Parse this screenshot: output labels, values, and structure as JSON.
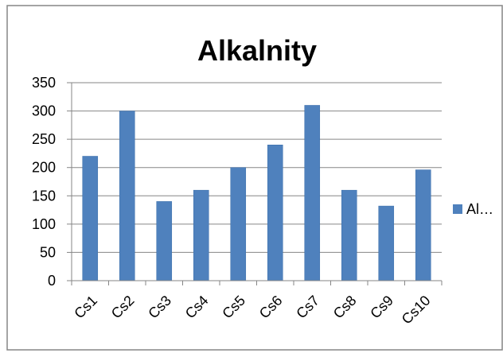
{
  "chart_data": {
    "type": "bar",
    "title": "Alkalnity",
    "xlabel": "",
    "ylabel": "",
    "categories": [
      "Cs1",
      "Cs2",
      "Cs3",
      "Cs4",
      "Cs5",
      "Cs6",
      "Cs7",
      "Cs8",
      "Cs9",
      "Cs10"
    ],
    "series": [
      {
        "name": "Al…",
        "values": [
          220,
          300,
          140,
          160,
          200,
          240,
          310,
          160,
          132,
          196
        ]
      }
    ],
    "ylim": [
      0,
      350
    ],
    "yticks": [
      0,
      50,
      100,
      150,
      200,
      250,
      300,
      350
    ],
    "grid": true,
    "legend_position": "right",
    "colors": {
      "bar": "#4F81BD",
      "bar_edge": "#3A6DAA",
      "grid": "#868686",
      "axis": "#868686",
      "border": "#868686",
      "background": "#ffffff"
    }
  }
}
